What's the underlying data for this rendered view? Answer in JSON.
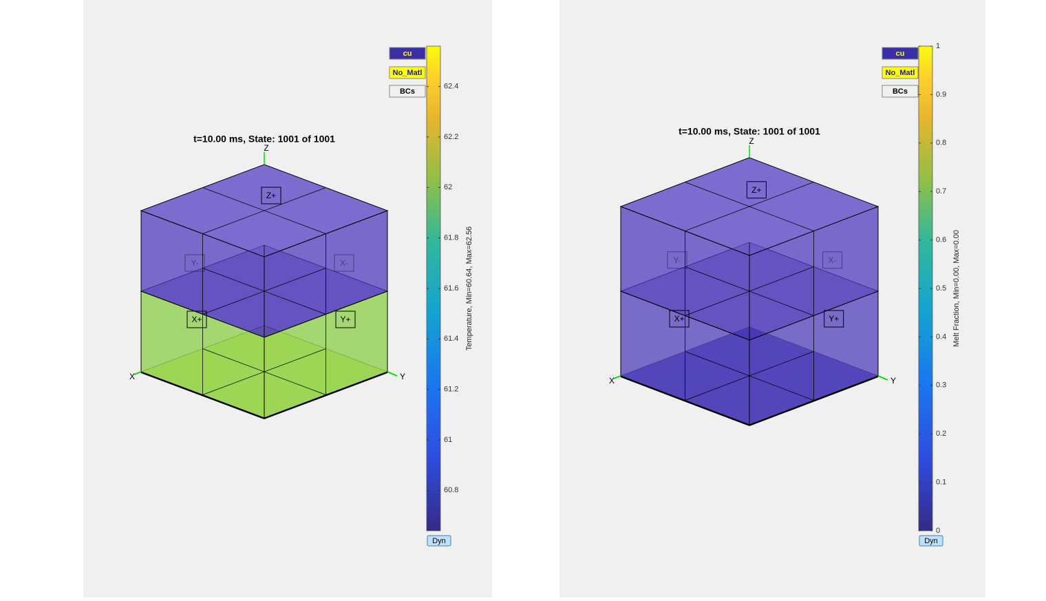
{
  "panels": [
    {
      "title": "t=10.00 ms, State: 1001 of 1001",
      "buttons": [
        "cu",
        "No_Matl",
        "BCs"
      ],
      "dyn": "Dyn",
      "colorbar": {
        "label": "Temperature, Min=60.64, Max=62.56",
        "lim": [
          60.64,
          62.56
        ],
        "ticks": [
          60.8,
          61,
          61.2,
          61.4,
          61.6,
          61.8,
          62,
          62.2,
          62.4
        ]
      },
      "axes": [
        "X",
        "Y",
        "Z"
      ],
      "faces": [
        "Z+",
        "Y-",
        "X-",
        "X+",
        "Y+"
      ]
    },
    {
      "title": "t=10.00 ms, State: 1001 of 1001",
      "buttons": [
        "cu",
        "No_Matl",
        "BCs"
      ],
      "dyn": "Dyn",
      "colorbar": {
        "label": "Melt Fraction, Min=0.00, Max=0.00",
        "lim": [
          0,
          1
        ],
        "ticks": [
          0,
          0.1,
          0.2,
          0.3,
          0.4,
          0.5,
          0.6,
          0.7,
          0.8,
          0.9,
          1
        ]
      },
      "axes": [
        "X",
        "Y",
        "Z"
      ],
      "faces": [
        "Z+",
        "Y-",
        "X-",
        "X+",
        "Y+"
      ]
    }
  ]
}
